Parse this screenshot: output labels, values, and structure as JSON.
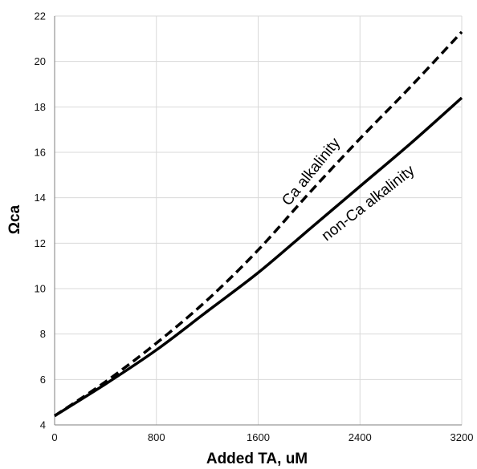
{
  "chart_data": {
    "type": "line",
    "xlabel": "Added TA, uM",
    "ylabel": "Ωca",
    "xlim": [
      0,
      3200
    ],
    "ylim": [
      4,
      22
    ],
    "x_ticks": [
      "0",
      "800",
      "1600",
      "2400",
      "3200"
    ],
    "y_ticks": [
      "4",
      "6",
      "8",
      "10",
      "12",
      "14",
      "16",
      "18",
      "20",
      "22"
    ],
    "grid": true,
    "series": [
      {
        "name": "Ca alkalinity",
        "style": "dashed",
        "color": "#000000",
        "x": [
          0,
          400,
          800,
          1200,
          1600,
          2000,
          2400,
          2800,
          3200
        ],
        "y": [
          4.4,
          5.9,
          7.6,
          9.5,
          11.7,
          14.2,
          16.6,
          18.9,
          21.3
        ]
      },
      {
        "name": "non-Ca alkalinity",
        "style": "solid",
        "color": "#000000",
        "x": [
          0,
          400,
          800,
          1200,
          1600,
          2000,
          2400,
          2800,
          3200
        ],
        "y": [
          4.4,
          5.8,
          7.3,
          9.0,
          10.7,
          12.6,
          14.5,
          16.4,
          18.4
        ]
      }
    ]
  }
}
